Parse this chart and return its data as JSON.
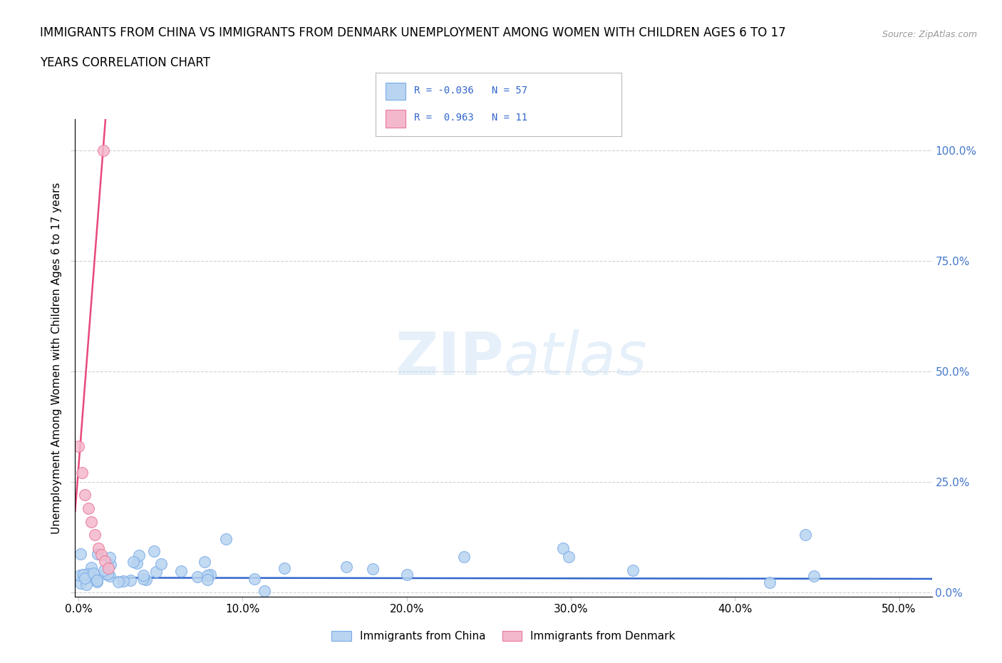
{
  "title_line1": "IMMIGRANTS FROM CHINA VS IMMIGRANTS FROM DENMARK UNEMPLOYMENT AMONG WOMEN WITH CHILDREN AGES 6 TO 17",
  "title_line2": "YEARS CORRELATION CHART",
  "source_text": "Source: ZipAtlas.com",
  "ylabel": "Unemployment Among Women with Children Ages 6 to 17 years",
  "xlim": [
    -0.002,
    0.52
  ],
  "ylim": [
    -0.01,
    1.07
  ],
  "xticks": [
    0.0,
    0.1,
    0.2,
    0.3,
    0.4,
    0.5
  ],
  "yticks": [
    0.0,
    0.25,
    0.5,
    0.75,
    1.0
  ],
  "xticklabels": [
    "0.0%",
    "10.0%",
    "20.0%",
    "30.0%",
    "40.0%",
    "50.0%"
  ],
  "yticklabels": [
    "0.0%",
    "25.0%",
    "50.0%",
    "75.0%",
    "100.0%"
  ],
  "china_color": "#b8d4f0",
  "china_edge_color": "#7aabe8",
  "denmark_color": "#f4b8cc",
  "denmark_edge_color": "#e87898",
  "china_trend_color": "#3366cc",
  "denmark_trend_color": "#e8487a",
  "china_R": -0.036,
  "china_N": 57,
  "denmark_R": 0.963,
  "denmark_N": 11,
  "watermark_zip": "ZIP",
  "watermark_atlas": "atlas",
  "legend_label_china": "Immigrants from China",
  "legend_label_denmark": "Immigrants from Denmark"
}
